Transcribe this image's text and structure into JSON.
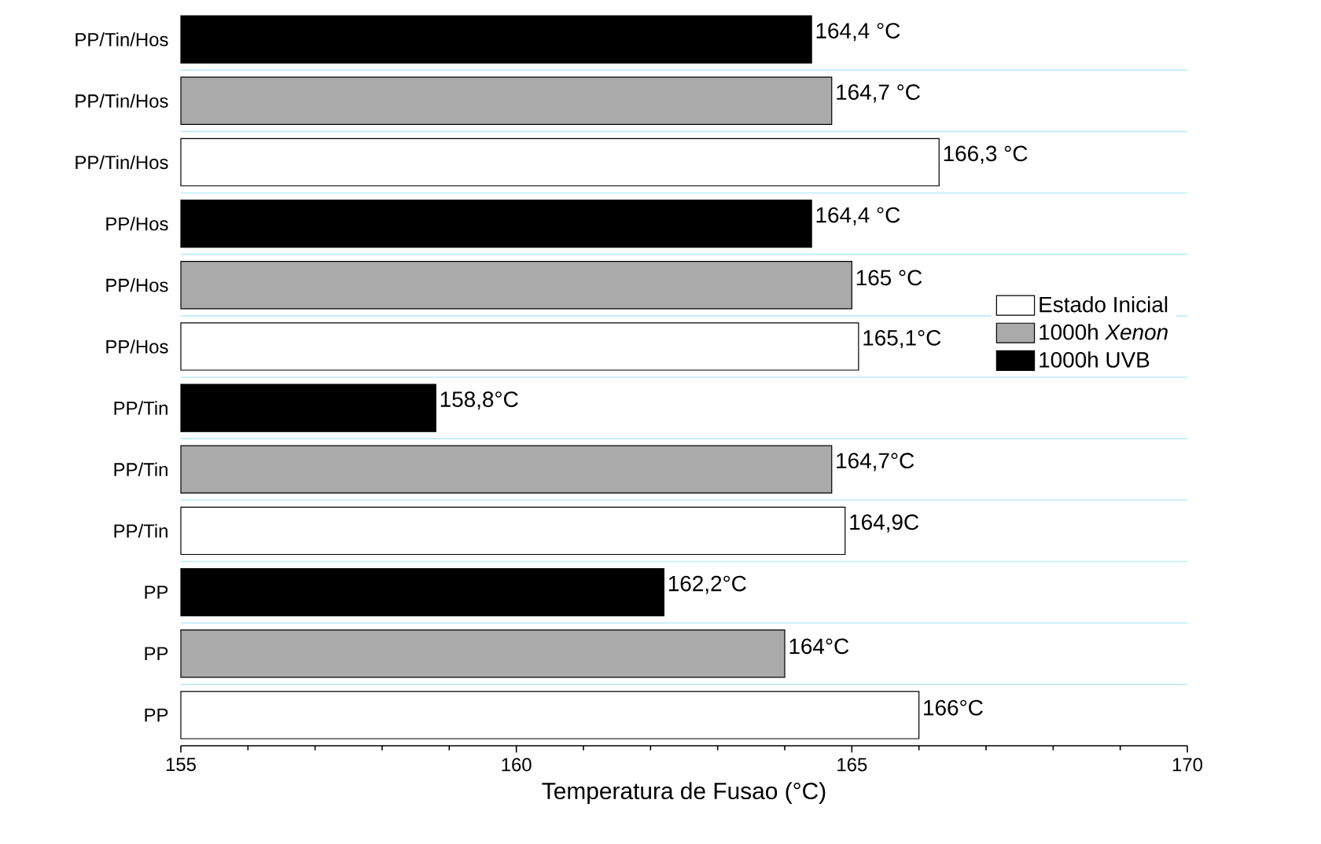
{
  "chart_data": {
    "type": "bar",
    "orientation": "horizontal",
    "xlabel": "Temperatura de Fusao (°C)",
    "categories": [
      "PP/Tin/Hos",
      "PP/Tin/Hos",
      "PP/Tin/Hos",
      "PP/Hos",
      "PP/Hos",
      "PP/Hos",
      "PP/Tin",
      "PP/Tin",
      "PP/Tin",
      "PP",
      "PP",
      "PP"
    ],
    "xlim": [
      155,
      170
    ],
    "xticks": [
      155,
      160,
      165,
      170
    ],
    "grid": "y",
    "legend": "right",
    "series": [
      {
        "name": "Estado Inicial",
        "color": "#ffffff",
        "values": [
          null,
          null,
          166.3,
          null,
          null,
          165.1,
          null,
          null,
          164.9,
          null,
          null,
          166
        ],
        "value_labels": [
          null,
          null,
          "166,3 °C",
          null,
          null,
          "165,1°C",
          null,
          null,
          "164,9C",
          null,
          null,
          "166°C"
        ]
      },
      {
        "name": "1000h *Xenon*",
        "color": "#aaaaaa",
        "values": [
          null,
          164.7,
          null,
          null,
          165,
          null,
          null,
          164.7,
          null,
          null,
          164,
          null
        ],
        "value_labels": [
          null,
          "164,7 °C",
          null,
          null,
          "165 °C",
          null,
          null,
          "164,7°C",
          null,
          null,
          "164°C",
          null
        ]
      },
      {
        "name": "1000h UVB",
        "color": "#000000",
        "values": [
          164.4,
          null,
          null,
          164.4,
          null,
          null,
          158.8,
          null,
          null,
          162.2,
          null,
          null
        ],
        "value_labels": [
          "164,4 °C",
          null,
          null,
          "164,4 °C",
          null,
          null,
          "158,8°C",
          null,
          null,
          "162,2°C",
          null,
          null
        ]
      }
    ]
  }
}
